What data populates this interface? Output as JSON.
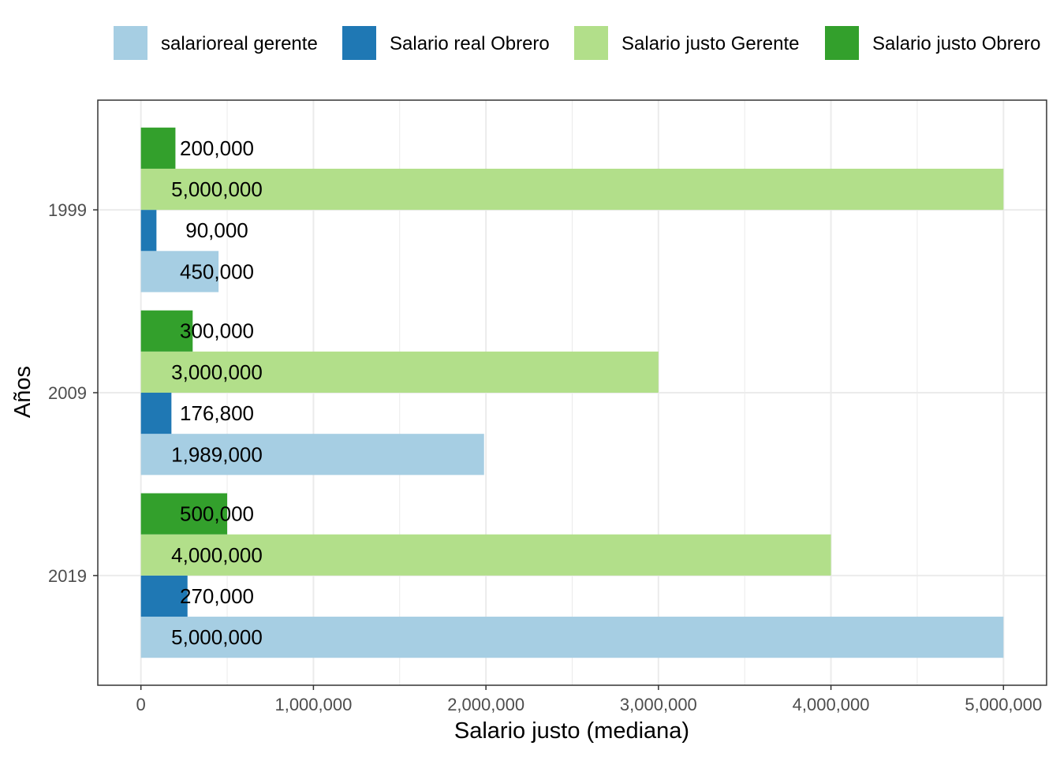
{
  "chart_data": {
    "type": "bar",
    "orientation": "horizontal",
    "categories": [
      "1999",
      "2009",
      "2019"
    ],
    "series": [
      {
        "name": "salarioreal gerente",
        "color": "#a6cee3",
        "values": [
          450000,
          1989000,
          5000000
        ],
        "labels": [
          "450,000",
          "1,989,000",
          "5,000,000"
        ]
      },
      {
        "name": "Salario real Obrero",
        "color": "#1f78b4",
        "values": [
          90000,
          176800,
          270000
        ],
        "labels": [
          "90,000",
          "176,800",
          "270,000"
        ]
      },
      {
        "name": "Salario justo Gerente",
        "color": "#b2df8a",
        "values": [
          5000000,
          3000000,
          4000000
        ],
        "labels": [
          "5,000,000",
          "3,000,000",
          "4,000,000"
        ]
      },
      {
        "name": "Salario justo Obrero",
        "color": "#33a02c",
        "values": [
          200000,
          300000,
          500000
        ],
        "labels": [
          "200,000",
          "300,000",
          "500,000"
        ]
      }
    ],
    "xlabel": "Salario justo (mediana)",
    "ylabel": "Años",
    "xlim": [
      -250000,
      5250000
    ],
    "xticks": [
      0,
      1000000,
      2000000,
      3000000,
      4000000,
      5000000
    ],
    "xtick_labels": [
      "0",
      "1,000,000",
      "2,000,000",
      "3,000,000",
      "4,000,000",
      "5,000,000"
    ],
    "grid": true,
    "legend_position": "top"
  }
}
